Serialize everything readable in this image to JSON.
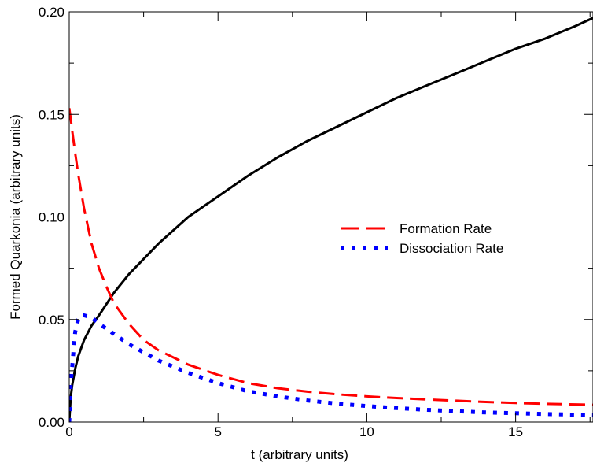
{
  "chart_data": {
    "type": "line",
    "title": "",
    "xlabel": "t (arbitrary units)",
    "ylabel": "Formed Quarkonia (arbitrary units)",
    "xlim": [
      0,
      17.6
    ],
    "ylim": [
      0,
      0.2
    ],
    "xticks": [
      0,
      5,
      10,
      15
    ],
    "xtick_labels": [
      "0",
      "5",
      "10",
      "15"
    ],
    "yticks": [
      0,
      0.05,
      0.1,
      0.15,
      0.2
    ],
    "ytick_labels": [
      "0.00",
      "0.05",
      "0.10",
      "0.15",
      "0.20"
    ],
    "grid": false,
    "legend_position": "middle-right",
    "series": [
      {
        "key": "formed",
        "name": "",
        "color": "#000000",
        "style": "solid",
        "x": [
          0,
          0.05,
          0.1,
          0.2,
          0.3,
          0.5,
          0.75,
          1,
          1.5,
          2,
          3,
          4,
          5,
          6,
          7,
          8,
          9,
          10,
          11,
          12,
          13,
          14,
          15,
          16,
          17,
          17.6
        ],
        "y": [
          0,
          0.012,
          0.018,
          0.026,
          0.032,
          0.04,
          0.047,
          0.052,
          0.063,
          0.072,
          0.087,
          0.1,
          0.11,
          0.12,
          0.129,
          0.137,
          0.144,
          0.151,
          0.158,
          0.164,
          0.17,
          0.176,
          0.182,
          0.187,
          0.193,
          0.197
        ]
      },
      {
        "key": "formation",
        "name": "Formation Rate",
        "color": "#ff0000",
        "style": "dashed",
        "x": [
          0,
          0.05,
          0.1,
          0.2,
          0.3,
          0.5,
          0.75,
          1,
          1.25,
          1.5,
          2,
          2.5,
          3,
          4,
          5,
          6,
          7,
          8,
          9,
          10,
          11,
          12,
          13,
          14,
          15,
          16,
          17,
          17.6
        ],
        "y": [
          0.153,
          0.148,
          0.142,
          0.131,
          0.121,
          0.104,
          0.087,
          0.075,
          0.066,
          0.058,
          0.048,
          0.04,
          0.035,
          0.028,
          0.023,
          0.019,
          0.0165,
          0.0148,
          0.0135,
          0.0125,
          0.0117,
          0.011,
          0.0104,
          0.0098,
          0.0093,
          0.0089,
          0.0086,
          0.0084
        ]
      },
      {
        "key": "dissociation",
        "name": "Dissociation Rate",
        "color": "#0000ff",
        "style": "dotted",
        "x": [
          0,
          0.05,
          0.1,
          0.15,
          0.2,
          0.3,
          0.4,
          0.5,
          0.75,
          1,
          1.5,
          2,
          2.5,
          3,
          4,
          5,
          6,
          7,
          8,
          9,
          10,
          11,
          12,
          13,
          14,
          15,
          16,
          17,
          17.6
        ],
        "y": [
          0,
          0.018,
          0.027,
          0.036,
          0.044,
          0.05,
          0.052,
          0.052,
          0.051,
          0.048,
          0.043,
          0.038,
          0.034,
          0.03,
          0.024,
          0.019,
          0.015,
          0.0125,
          0.0105,
          0.009,
          0.0078,
          0.0068,
          0.006,
          0.0053,
          0.0047,
          0.0043,
          0.0039,
          0.0036,
          0.0034
        ]
      }
    ]
  }
}
